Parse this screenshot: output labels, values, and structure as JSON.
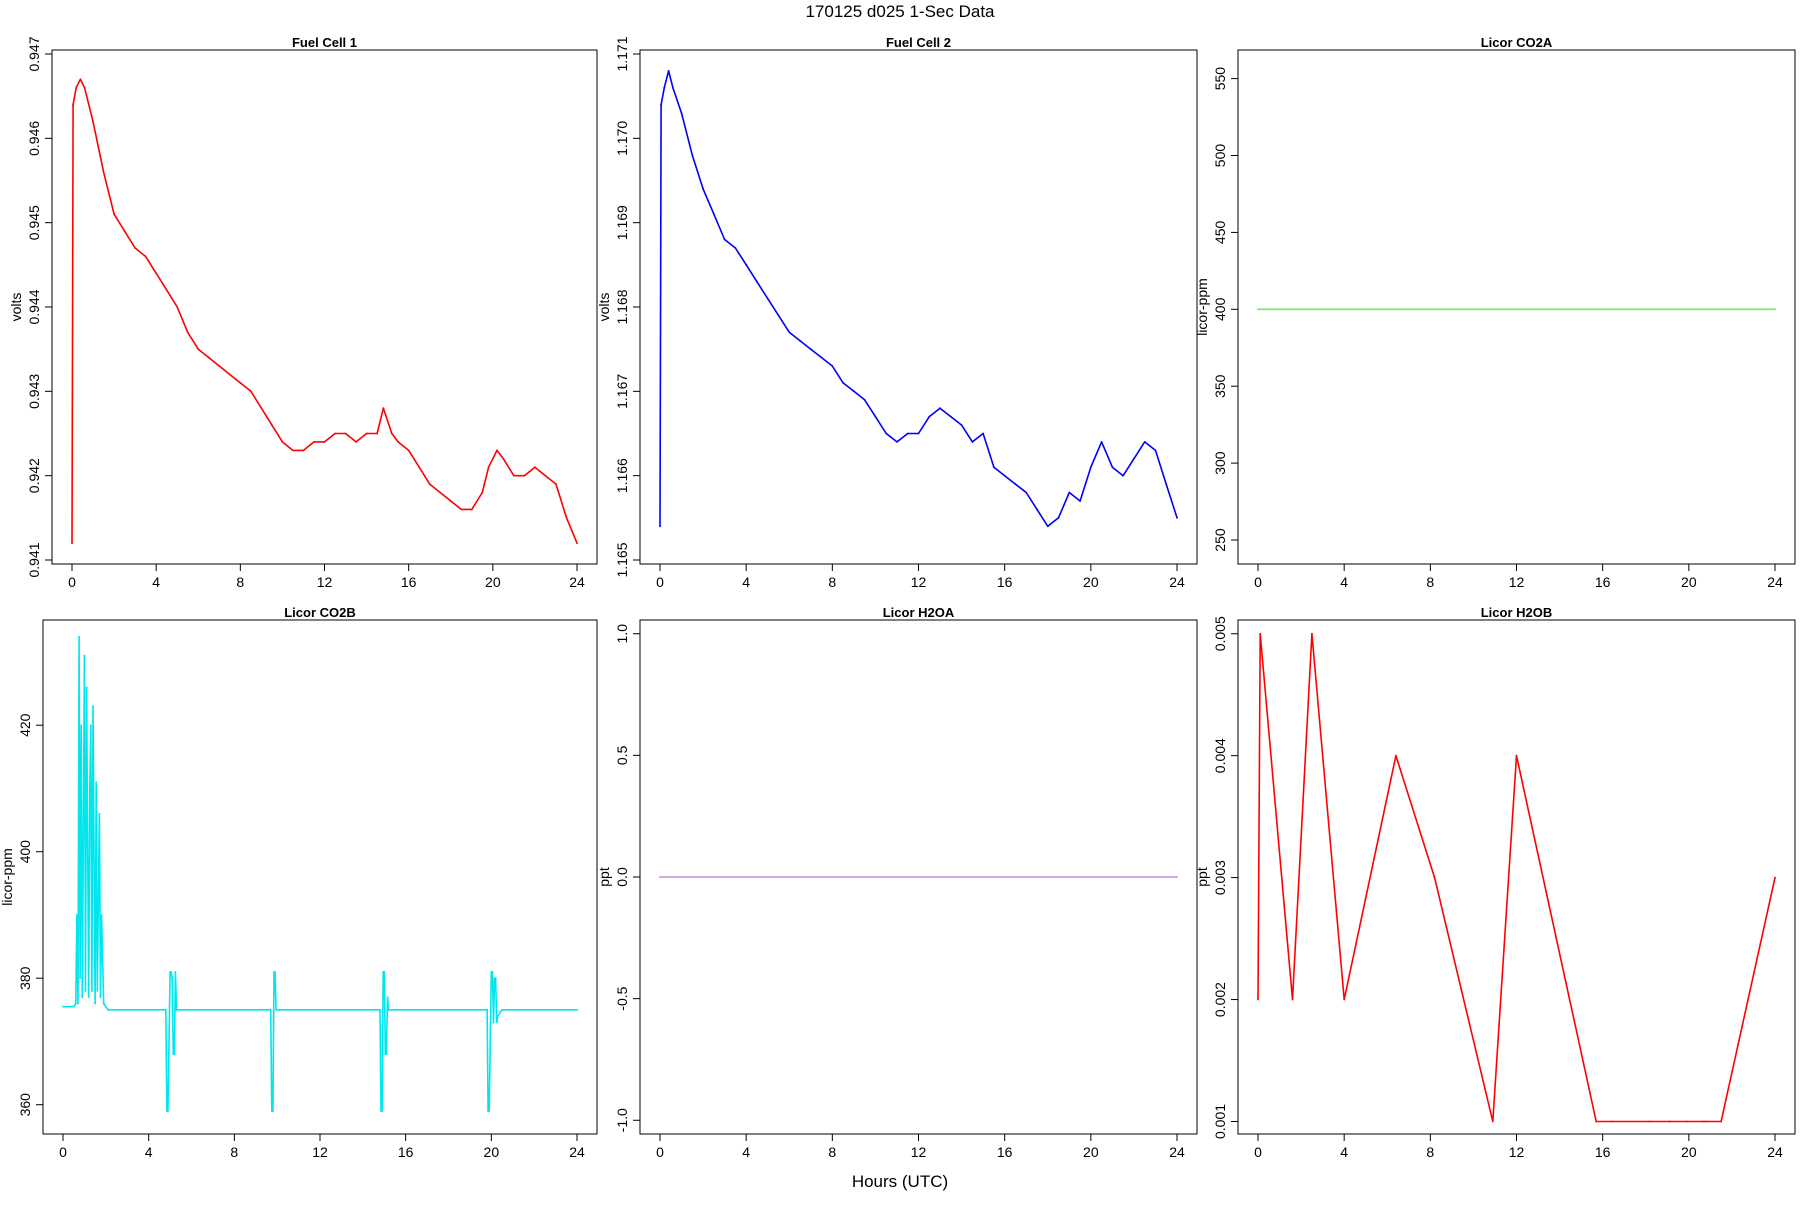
{
  "title": "170125   d025   1-Sec Data",
  "xlabel": "Hours (UTC)",
  "chart_data": [
    {
      "type": "line",
      "title": "Fuel Cell 1",
      "ylabel": "volts",
      "color": "#ff0000",
      "xlim": [
        0,
        24
      ],
      "ylim": [
        0.941,
        0.947
      ],
      "xticks": [
        "0",
        "4",
        "8",
        "12",
        "16",
        "20",
        "24"
      ],
      "yticks": [
        "0.941",
        "0.942",
        "0.943",
        "0.944",
        "0.945",
        "0.946",
        "0.947"
      ],
      "series": [
        {
          "x": [
            0,
            0.05,
            0.2,
            0.4,
            0.6,
            1.0,
            1.5,
            2.0,
            2.5,
            3.0,
            3.5,
            4.0,
            4.5,
            5.0,
            5.5,
            6.0,
            6.5,
            7.0,
            7.5,
            8.0,
            8.5,
            9.0,
            9.5,
            10.0,
            10.5,
            11.0,
            11.5,
            12.0,
            12.5,
            13.0,
            13.5,
            14.0,
            14.5,
            14.8,
            15.2,
            15.5,
            16.0,
            16.5,
            17.0,
            17.5,
            18.0,
            18.5,
            19.0,
            19.5,
            19.8,
            20.2,
            20.5,
            21.0,
            21.5,
            22.0,
            22.5,
            23.0,
            23.5,
            24.0
          ],
          "y": [
            0.9412,
            0.9464,
            0.9466,
            0.9467,
            0.9466,
            0.9462,
            0.9456,
            0.9451,
            0.9449,
            0.9447,
            0.9446,
            0.9444,
            0.9442,
            0.944,
            0.9437,
            0.9435,
            0.9434,
            0.9433,
            0.9432,
            0.9431,
            0.943,
            0.9428,
            0.9426,
            0.9424,
            0.9423,
            0.9423,
            0.9424,
            0.9424,
            0.9425,
            0.9425,
            0.9424,
            0.9425,
            0.9425,
            0.9428,
            0.9425,
            0.9424,
            0.9423,
            0.9421,
            0.9419,
            0.9418,
            0.9417,
            0.9416,
            0.9416,
            0.9418,
            0.9421,
            0.9423,
            0.9422,
            0.942,
            0.942,
            0.9421,
            0.942,
            0.9419,
            0.9415,
            0.9412
          ]
        }
      ]
    },
    {
      "type": "line",
      "title": "Fuel Cell 2",
      "ylabel": "volts",
      "color": "#0000ff",
      "xlim": [
        0,
        24
      ],
      "ylim": [
        1.165,
        1.171
      ],
      "xticks": [
        "0",
        "4",
        "8",
        "12",
        "16",
        "20",
        "24"
      ],
      "yticks": [
        "1.165",
        "1.166",
        "1.167",
        "1.168",
        "1.169",
        "1.170",
        "1.171"
      ],
      "series": [
        {
          "x": [
            0,
            0.05,
            0.2,
            0.4,
            0.6,
            1.0,
            1.5,
            2.0,
            2.5,
            3.0,
            3.5,
            4.0,
            4.5,
            5.0,
            5.5,
            6.0,
            6.5,
            7.0,
            7.5,
            8.0,
            8.5,
            9.0,
            9.5,
            10.0,
            10.5,
            11.0,
            11.5,
            12.0,
            12.5,
            13.0,
            13.5,
            14.0,
            14.5,
            15.0,
            15.5,
            16.0,
            16.5,
            17.0,
            17.5,
            18.0,
            18.5,
            19.0,
            19.5,
            20.0,
            20.5,
            21.0,
            21.5,
            22.0,
            22.5,
            23.0,
            23.5,
            24.0
          ],
          "y": [
            1.1654,
            1.1704,
            1.1706,
            1.1708,
            1.1706,
            1.1703,
            1.1698,
            1.1694,
            1.1691,
            1.1688,
            1.1687,
            1.1685,
            1.1683,
            1.1681,
            1.1679,
            1.1677,
            1.1676,
            1.1675,
            1.1674,
            1.1673,
            1.1671,
            1.167,
            1.1669,
            1.1667,
            1.1665,
            1.1664,
            1.1665,
            1.1665,
            1.1667,
            1.1668,
            1.1667,
            1.1666,
            1.1664,
            1.1665,
            1.1661,
            1.166,
            1.1659,
            1.1658,
            1.1656,
            1.1654,
            1.1655,
            1.1658,
            1.1657,
            1.1661,
            1.1664,
            1.1661,
            1.166,
            1.1662,
            1.1664,
            1.1663,
            1.1659,
            1.1655
          ]
        }
      ]
    },
    {
      "type": "line",
      "title": "Licor CO2A",
      "ylabel": "licor-ppm",
      "color": "#66ee66",
      "xlim": [
        0,
        24
      ],
      "ylim": [
        237,
        566
      ],
      "xticks": [
        "0",
        "4",
        "8",
        "12",
        "16",
        "20",
        "24"
      ],
      "yticks": [
        "250",
        "300",
        "350",
        "400",
        "450",
        "500",
        "550"
      ],
      "series": [
        {
          "x": [
            0,
            24
          ],
          "y": [
            400,
            400
          ]
        }
      ]
    },
    {
      "type": "line",
      "title": "Licor CO2B",
      "ylabel": "licor-ppm",
      "color": "#00e5ee",
      "xlim": [
        0,
        24
      ],
      "ylim": [
        356,
        436
      ],
      "xticks": [
        "0",
        "4",
        "8",
        "12",
        "16",
        "20",
        "24"
      ],
      "yticks": [
        "360",
        "380",
        "400",
        "420"
      ],
      "series": [
        {
          "x": [
            0,
            0.5,
            0.6,
            0.65,
            0.7,
            0.75,
            0.8,
            0.85,
            0.9,
            1.0,
            1.05,
            1.1,
            1.2,
            1.25,
            1.3,
            1.35,
            1.4,
            1.5,
            1.55,
            1.6,
            1.7,
            1.75,
            1.8,
            1.9,
            2.0,
            2.1,
            2.2,
            2.5,
            3.0,
            3.5,
            4.0,
            4.5,
            4.8,
            4.85,
            4.9,
            5.0,
            5.05,
            5.1,
            5.15,
            5.2,
            5.25,
            5.3,
            5.5,
            6.0,
            7.0,
            8.0,
            9.0,
            9.5,
            9.7,
            9.75,
            9.8,
            9.85,
            9.9,
            9.95,
            10.1,
            11.0,
            12.0,
            13.0,
            14.0,
            14.5,
            14.8,
            14.85,
            14.9,
            14.95,
            15.0,
            15.05,
            15.1,
            15.15,
            15.2,
            15.4,
            16.0,
            17.0,
            18.0,
            19.0,
            19.5,
            19.8,
            19.85,
            19.9,
            20.0,
            20.05,
            20.1,
            20.15,
            20.2,
            20.25,
            20.3,
            20.5,
            21.0,
            22.0,
            23.0,
            24.0
          ],
          "y": [
            375.5,
            375.5,
            376,
            390,
            376,
            434,
            380,
            420,
            377,
            431,
            378,
            426,
            377,
            410,
            420,
            378,
            423,
            376,
            411,
            378,
            406,
            377,
            390,
            376,
            375.5,
            375,
            375,
            375,
            375,
            375,
            375,
            375,
            375,
            359,
            359,
            381,
            381,
            380,
            368,
            368,
            381,
            375,
            375,
            375,
            375,
            375,
            375,
            375,
            375,
            359,
            359,
            381,
            381,
            375,
            375,
            375,
            375,
            375,
            375,
            375,
            375,
            359,
            359,
            381,
            381,
            368,
            368,
            377,
            375,
            375,
            375,
            375,
            375,
            375,
            375,
            375,
            359,
            359,
            381,
            381,
            373,
            380,
            380,
            373,
            374,
            375,
            375,
            375,
            375,
            375
          ]
        }
      ]
    },
    {
      "type": "line",
      "title": "Licor H2OA",
      "ylabel": "ppt",
      "color": "#cc88dd",
      "xlim": [
        0,
        24
      ],
      "ylim": [
        -1.04,
        1.04
      ],
      "xticks": [
        "0",
        "4",
        "8",
        "12",
        "16",
        "20",
        "24"
      ],
      "yticks": [
        "-1.0",
        "-0.5",
        "0.0",
        "0.5",
        "1.0"
      ],
      "series": [
        {
          "x": [
            0,
            24
          ],
          "y": [
            0,
            0
          ]
        }
      ]
    },
    {
      "type": "line",
      "title": "Licor H2OB",
      "ylabel": "ppt",
      "color": "#ff0000",
      "xlim": [
        0,
        24
      ],
      "ylim": [
        0.00093,
        0.00508
      ],
      "xticks": [
        "0",
        "4",
        "8",
        "12",
        "16",
        "20",
        "24"
      ],
      "yticks": [
        "0.001",
        "0.002",
        "0.003",
        "0.004",
        "0.005"
      ],
      "series": [
        {
          "x": [
            0,
            0.1,
            1.6,
            2.5,
            4.0,
            6.4,
            8.2,
            10.9,
            12.0,
            15.7,
            16.4,
            18.2,
            19.1,
            19.9,
            20.7,
            20.8,
            21.5,
            24.0
          ],
          "y": [
            0.002,
            0.005,
            0.002,
            0.005,
            0.002,
            0.004,
            0.003,
            0.001,
            0.004,
            0.001,
            0.001,
            0.001,
            0.001,
            0.001,
            0.001,
            0.001,
            0.001,
            0.003
          ]
        }
      ]
    }
  ]
}
